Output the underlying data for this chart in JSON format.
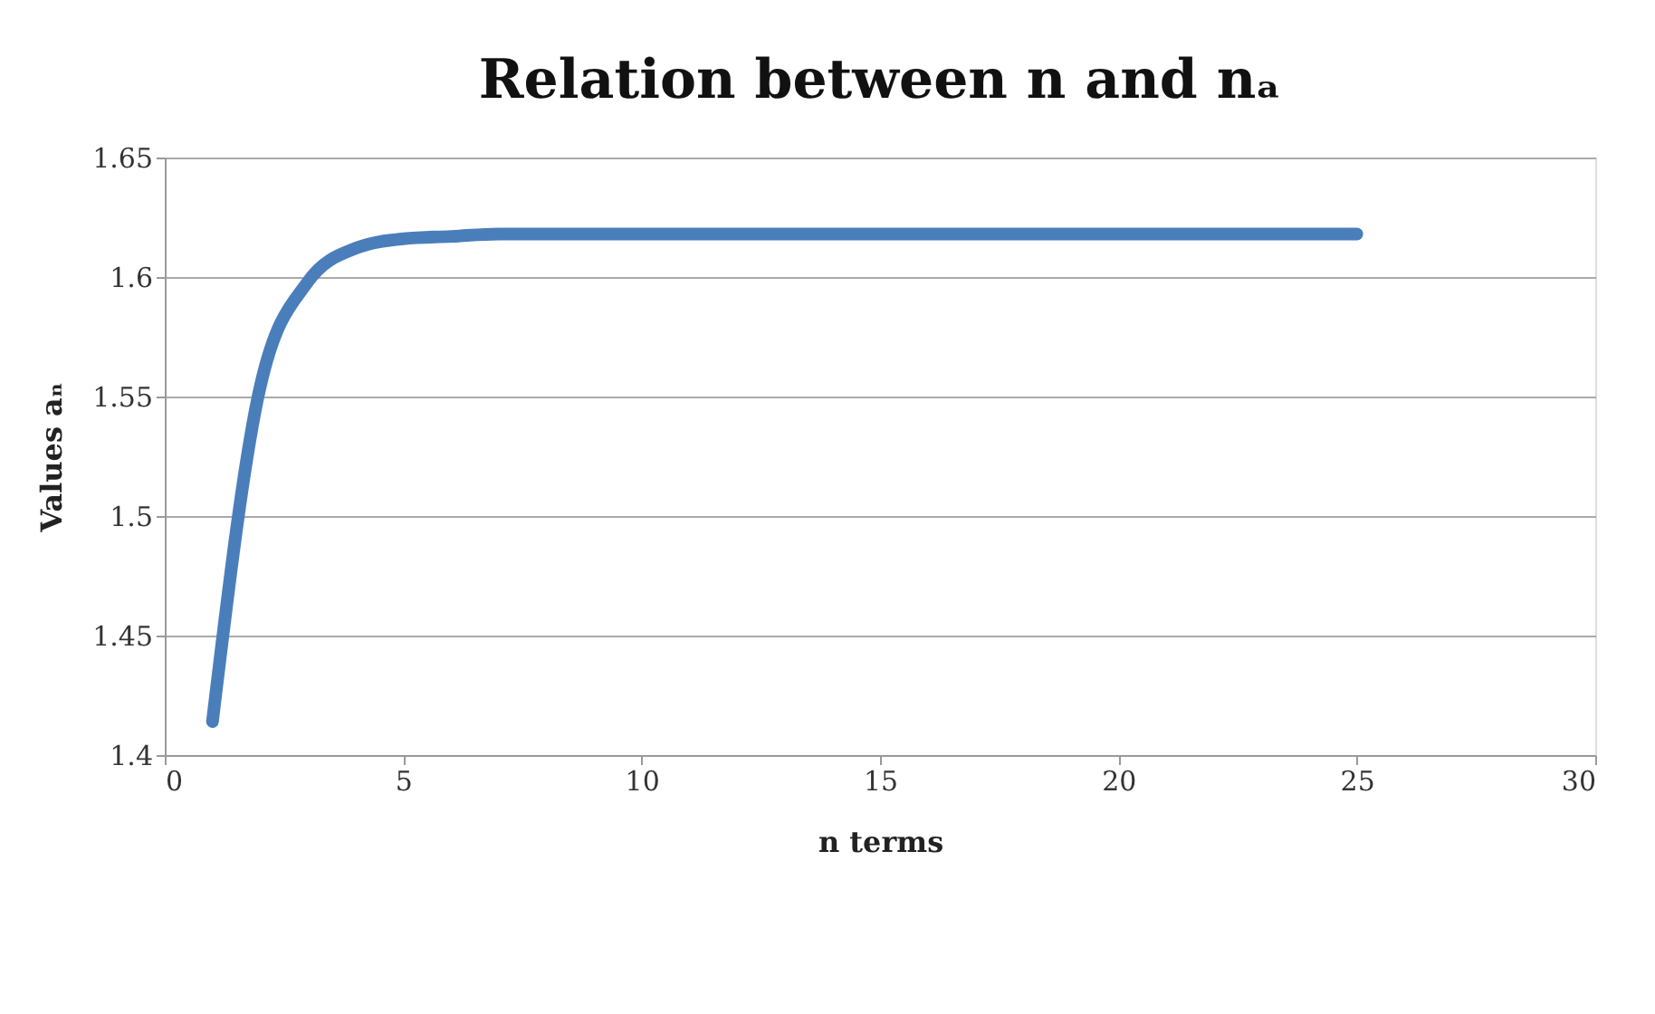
{
  "chart_data": {
    "type": "line",
    "title": "Relation between n and nₐ",
    "xlabel": "n terms",
    "ylabel": "Values aₙ",
    "x": [
      1,
      2,
      3,
      4,
      5,
      6,
      7,
      8,
      9,
      10,
      11,
      12,
      13,
      14,
      15,
      16,
      17,
      18,
      19,
      20,
      21,
      22,
      23,
      24,
      25
    ],
    "series": [
      {
        "color": "#4a7ebb",
        "values": [
          1.414,
          1.554,
          1.598,
          1.612,
          1.616,
          1.617,
          1.618,
          1.618,
          1.618,
          1.618,
          1.618,
          1.618,
          1.618,
          1.618,
          1.618,
          1.618,
          1.618,
          1.618,
          1.618,
          1.618,
          1.618,
          1.618,
          1.618,
          1.618,
          1.618
        ]
      }
    ],
    "xlim": [
      0,
      30
    ],
    "xticks": [
      0,
      5,
      10,
      15,
      20,
      25,
      30
    ],
    "ylim": [
      1.4,
      1.65
    ],
    "yticks": [
      1.4,
      1.45,
      1.5,
      1.55,
      1.6,
      1.65
    ],
    "grid": "y",
    "line_style": "solid"
  }
}
